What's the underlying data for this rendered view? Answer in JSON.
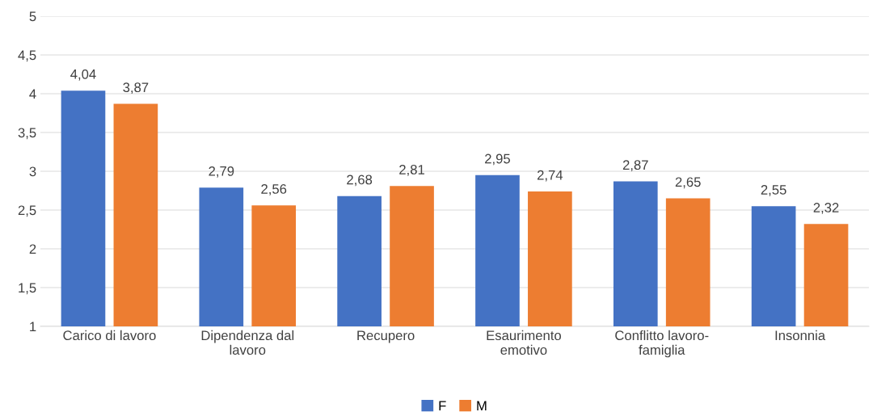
{
  "chart_data": {
    "type": "bar",
    "categories": [
      "Carico di lavoro",
      "Dipendenza dal\nlavoro",
      "Recupero",
      "Esaurimento\nemotivo",
      "Conflitto lavoro-\nfamiglia",
      "Insonnia"
    ],
    "series": [
      {
        "name": "F",
        "color": "#4472c4",
        "values": [
          4.04,
          2.79,
          2.68,
          2.95,
          2.87,
          2.55
        ],
        "value_labels": [
          "4,04",
          "2,79",
          "2,68",
          "2,95",
          "2,87",
          "2,55"
        ]
      },
      {
        "name": "M",
        "color": "#ed7d31",
        "values": [
          3.87,
          2.56,
          2.81,
          2.74,
          2.65,
          2.32
        ],
        "value_labels": [
          "3,87",
          "2,56",
          "2,81",
          "2,74",
          "2,65",
          "2,32"
        ]
      }
    ],
    "ylim": [
      1,
      5
    ],
    "yticks": [
      1,
      {
        "value": 1.5,
        "label": "1,5"
      },
      2,
      {
        "value": 2.5,
        "label": "2,5"
      },
      3,
      {
        "value": 3.5,
        "label": "3,5"
      },
      4,
      {
        "value": 4.5,
        "label": "4,5"
      },
      5
    ],
    "grid": "y",
    "legend": "bottom"
  }
}
